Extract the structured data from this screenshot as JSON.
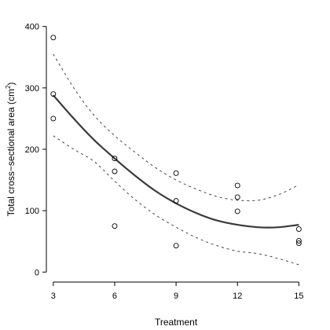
{
  "chart_data": {
    "type": "scatter",
    "title": "",
    "xlabel": "Treatment",
    "ylabel_prefix": "Total cross−sectional area (cm",
    "ylabel_superscript": "2",
    "ylabel_suffix": ")",
    "xlim": [
      2.7,
      15.6
    ],
    "ylim": [
      -15,
      415
    ],
    "x_ticks": [
      3,
      6,
      9,
      12,
      15
    ],
    "y_ticks": [
      0,
      100,
      200,
      300,
      400
    ],
    "grid": false,
    "legend": "none",
    "series": [
      {
        "kind": "points",
        "marker": "open-circle",
        "x": [
          3,
          3,
          3,
          6,
          6,
          6,
          9,
          9,
          9,
          12,
          12,
          12,
          15,
          15,
          15
        ],
        "y": [
          382,
          290,
          250,
          185,
          164,
          75,
          161,
          116,
          43,
          141,
          122,
          99,
          70,
          51,
          47
        ]
      },
      {
        "kind": "fitted-line",
        "style": "solid",
        "x": [
          3,
          4,
          5,
          6,
          7,
          8,
          9,
          10,
          11,
          12,
          13,
          14,
          15
        ],
        "y": [
          288,
          250,
          215,
          185,
          157,
          132,
          112,
          96,
          84,
          77,
          73,
          73,
          77
        ]
      },
      {
        "kind": "upper-confidence-band",
        "style": "dashed",
        "x": [
          3,
          4,
          5,
          6,
          7,
          8,
          9,
          10,
          11,
          12,
          13,
          14,
          15
        ],
        "y": [
          355,
          300,
          255,
          222,
          195,
          170,
          150,
          135,
          123,
          117,
          117,
          126,
          142
        ]
      },
      {
        "kind": "lower-confidence-band",
        "style": "dashed",
        "x": [
          3,
          4,
          5,
          6,
          7,
          8,
          9,
          10,
          11,
          12,
          13,
          14,
          15
        ],
        "y": [
          222,
          200,
          180,
          148,
          118,
          93,
          73,
          56,
          43,
          34,
          30,
          22,
          12
        ]
      }
    ]
  }
}
